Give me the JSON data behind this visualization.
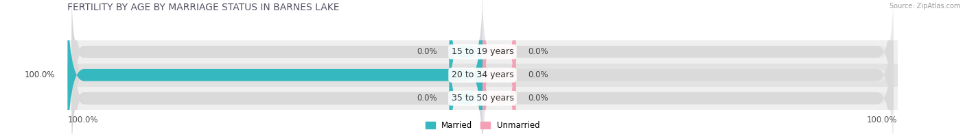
{
  "title": "FERTILITY BY AGE BY MARRIAGE STATUS IN BARNES LAKE",
  "source": "Source: ZipAtlas.com",
  "categories": [
    "15 to 19 years",
    "20 to 34 years",
    "35 to 50 years"
  ],
  "married_values": [
    0.0,
    100.0,
    0.0
  ],
  "unmarried_values": [
    0.0,
    0.0,
    0.0
  ],
  "married_color": "#35b8c0",
  "unmarried_color": "#f4a0b5",
  "bar_bg_left_color": "#d8d8dc",
  "bar_bg_right_color": "#e8e8ec",
  "row_bg_colors": [
    "#efefef",
    "#e2e2e2",
    "#efefef"
  ],
  "label_married_left": [
    "0.0%",
    "100.0%",
    "0.0%"
  ],
  "label_unmarried_right": [
    "0.0%",
    "0.0%",
    "0.0%"
  ],
  "bottom_left_label": "100.0%",
  "bottom_right_label": "100.0%",
  "title_fontsize": 10,
  "label_fontsize": 8.5,
  "bar_height": 0.52,
  "x_max": 100,
  "figsize": [
    14.06,
    1.96
  ],
  "dpi": 100
}
